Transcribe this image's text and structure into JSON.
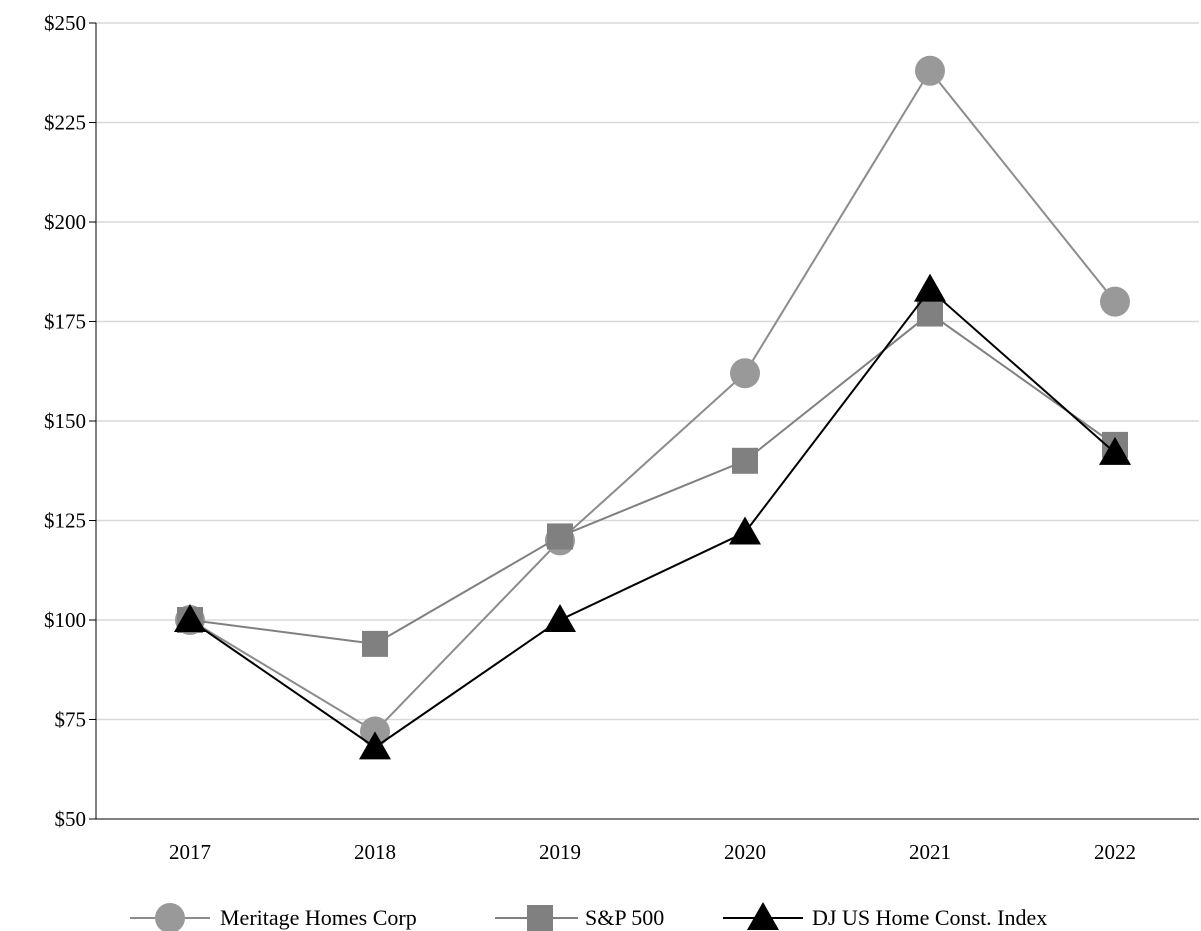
{
  "chart_data": {
    "type": "line",
    "title": "",
    "xlabel": "",
    "ylabel": "",
    "categories": [
      "2017",
      "2018",
      "2019",
      "2020",
      "2021",
      "2022"
    ],
    "ylim": [
      50,
      250
    ],
    "yticks": [
      50,
      75,
      100,
      125,
      150,
      175,
      200,
      225,
      250
    ],
    "ytick_labels": [
      "$50",
      "$75",
      "$100",
      "$125",
      "$150",
      "$175",
      "$200",
      "$225",
      "$250"
    ],
    "grid": "horizontal",
    "legend_position": "bottom",
    "series": [
      {
        "name": "Meritage Homes Corp",
        "values": [
          100,
          72,
          120,
          162,
          238,
          180
        ],
        "marker": "circle",
        "color": "#999999",
        "line_color": "#8c8c8c"
      },
      {
        "name": "S&P 500",
        "values": [
          100,
          94,
          121,
          140,
          177,
          144
        ],
        "marker": "square",
        "color": "#808080",
        "line_color": "#808080"
      },
      {
        "name": "DJ US Home Const. Index",
        "values": [
          100,
          68,
          100,
          122,
          183,
          142
        ],
        "marker": "triangle",
        "color": "#000000",
        "line_color": "#000000"
      }
    ]
  }
}
